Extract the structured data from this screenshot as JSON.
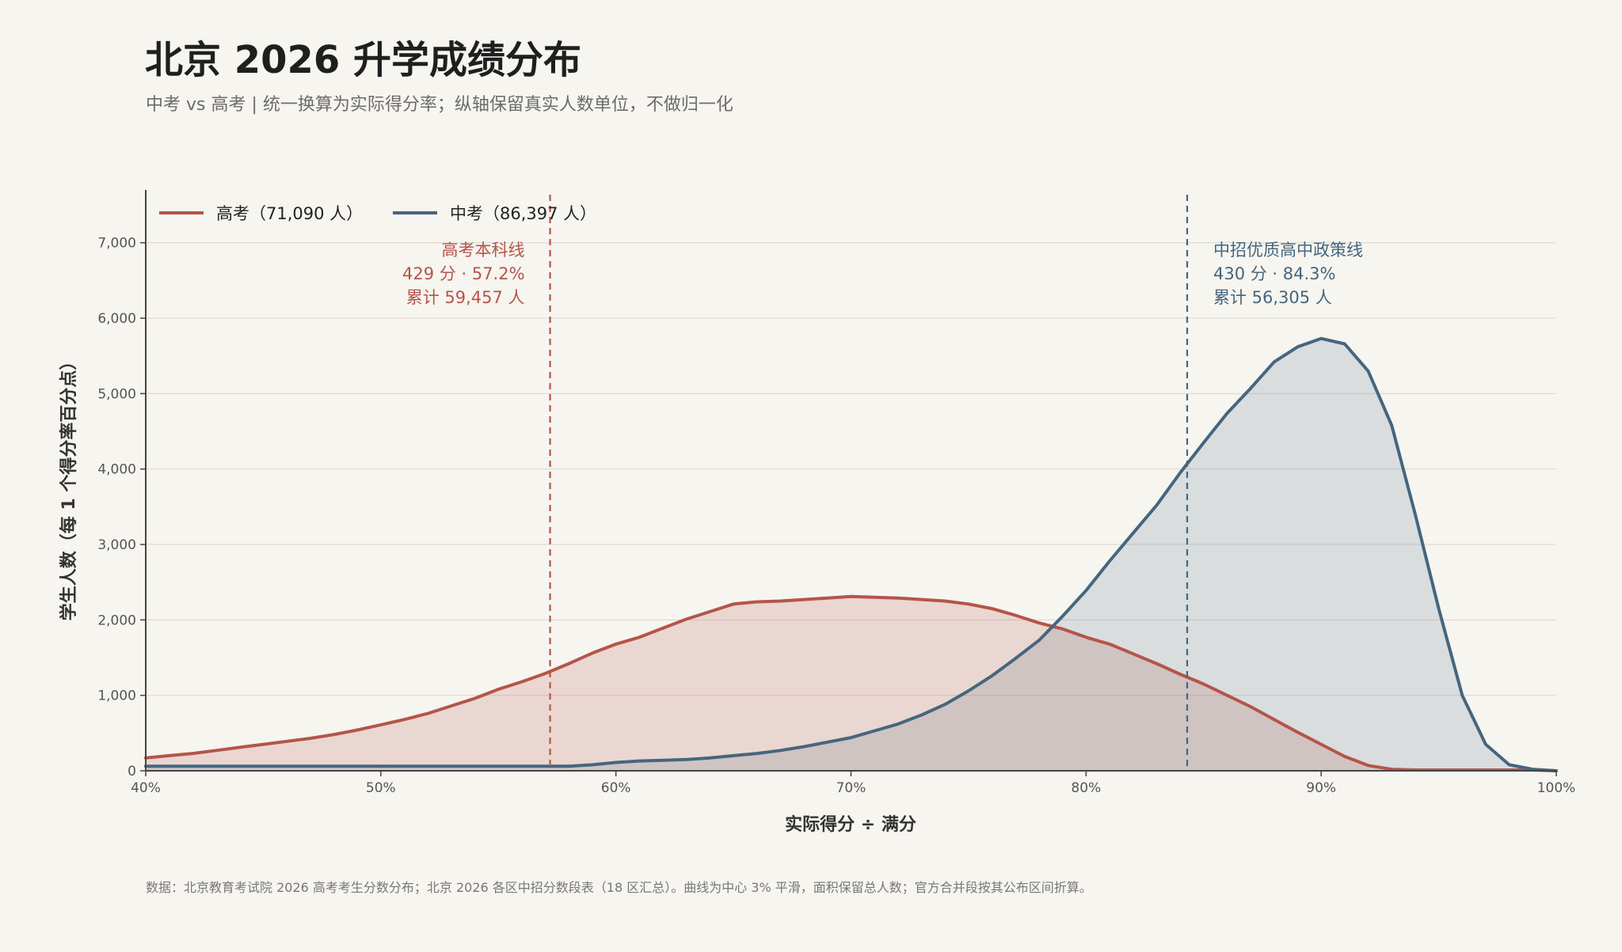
{
  "title": "北京 2026 升学成绩分布",
  "subtitle": "中考 vs 高考 | 统一换算为实际得分率；纵轴保留真实人数单位，不做归一化",
  "footnote": "数据：北京教育考试院 2026 高考考生分数分布；北京 2026 各区中招分数段表（18 区汇总）。曲线为中心 3% 平滑，面积保留总人数；官方合并段按其公布区间折算。",
  "colors": {
    "gaokao": "#b5554a",
    "zhongkao": "#45667e",
    "background": "#f7f5f0",
    "grid": "#dedbd5",
    "axis": "#444444"
  },
  "chart_data": {
    "type": "area",
    "xlabel": "实际得分 ÷ 满分",
    "ylabel": "学生人数（每 1 个得分率百分点）",
    "xlim": [
      40,
      100
    ],
    "ylim": [
      0,
      7700
    ],
    "x_ticks": [
      40,
      50,
      60,
      70,
      80,
      90,
      100
    ],
    "x_tick_labels": [
      "40%",
      "50%",
      "60%",
      "70%",
      "80%",
      "90%",
      "100%"
    ],
    "y_ticks": [
      0,
      1000,
      2000,
      3000,
      4000,
      5000,
      6000,
      7000
    ],
    "y_tick_labels": [
      "0",
      "1,000",
      "2,000",
      "3,000",
      "4,000",
      "5,000",
      "6,000",
      "7,000"
    ],
    "grid": true,
    "legend_position": "top-left",
    "x": [
      40,
      41,
      42,
      43,
      44,
      45,
      46,
      47,
      48,
      49,
      50,
      51,
      52,
      53,
      54,
      55,
      56,
      57,
      58,
      59,
      60,
      61,
      62,
      63,
      64,
      65,
      66,
      67,
      68,
      69,
      70,
      71,
      72,
      73,
      74,
      75,
      76,
      77,
      78,
      79,
      80,
      81,
      82,
      83,
      84,
      85,
      86,
      87,
      88,
      89,
      90,
      91,
      92,
      93,
      94,
      95,
      96,
      97,
      98,
      99,
      100
    ],
    "series": [
      {
        "name": "高考（71,090 人）",
        "color": "#b5554a",
        "values": [
          170,
          200,
          230,
          270,
          310,
          350,
          390,
          430,
          480,
          540,
          610,
          680,
          760,
          860,
          960,
          1080,
          1180,
          1290,
          1420,
          1560,
          1680,
          1770,
          1890,
          2010,
          2110,
          2210,
          2240,
          2250,
          2270,
          2290,
          2310,
          2300,
          2290,
          2270,
          2250,
          2210,
          2150,
          2060,
          1960,
          1880,
          1770,
          1680,
          1550,
          1420,
          1280,
          1150,
          1000,
          850,
          680,
          510,
          350,
          190,
          70,
          20,
          10,
          10,
          10,
          10,
          10,
          10,
          0
        ]
      },
      {
        "name": "中考（86,397 人）",
        "color": "#45667e",
        "values": [
          60,
          60,
          60,
          60,
          60,
          60,
          60,
          60,
          60,
          60,
          60,
          60,
          60,
          60,
          60,
          60,
          60,
          60,
          60,
          80,
          110,
          130,
          140,
          150,
          170,
          200,
          230,
          270,
          320,
          380,
          440,
          530,
          620,
          740,
          880,
          1060,
          1260,
          1490,
          1730,
          2050,
          2390,
          2780,
          3150,
          3520,
          3950,
          4350,
          4740,
          5070,
          5420,
          5620,
          5730,
          5660,
          5300,
          4580,
          3400,
          2150,
          1000,
          350,
          80,
          20,
          0
        ]
      }
    ],
    "annotations": [
      {
        "series": "高考",
        "x": 57.2,
        "color": "#b5554a",
        "align": "left",
        "lines": [
          "高考本科线",
          "429 分 · 57.2%",
          "累计 59,457 人"
        ]
      },
      {
        "series": "中考",
        "x": 84.3,
        "color": "#45667e",
        "align": "right",
        "lines": [
          "中招优质高中政策线",
          "430 分 · 84.3%",
          "累计 56,305 人"
        ]
      }
    ]
  }
}
